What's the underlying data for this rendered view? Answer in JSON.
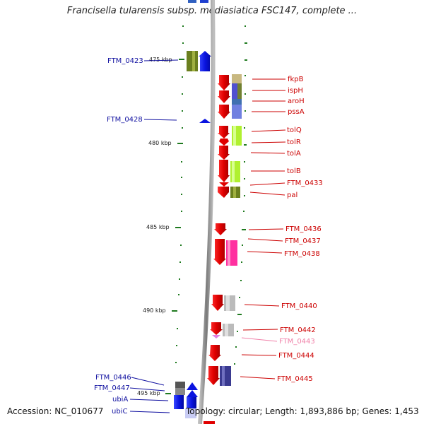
{
  "title": "Francisella tularensis subsp. mediasiatica FSC147, complete ...",
  "footer": {
    "accession": "Accession: NC_010677",
    "topology": "Topology: circular; Length: 1,893,886 bp; Genes: 1,453"
  },
  "scale_labels": [
    "475 kbp",
    "480 kbp",
    "485 kbp",
    "490 kbp",
    "495 kbp"
  ],
  "left_genes": [
    "FTM_0423",
    "FTM_0428",
    "FTM_0446",
    "FTM_0447",
    "ubiA",
    "ubiC"
  ],
  "right_genes": [
    "fkpB",
    "ispH",
    "aroH",
    "pssA",
    "tolQ",
    "tolR",
    "tolA",
    "tolB",
    "FTM_0433",
    "pal",
    "FTM_0436",
    "FTM_0437",
    "FTM_0438",
    "FTM_0440",
    "FTM_0442",
    "FTM_0443",
    "FTM_0444",
    "FTM_0445"
  ],
  "colors": {
    "plus_strand": "#e8000b",
    "minus_strand": "#0a14e0",
    "label_right": "#cc0000",
    "label_left": "#1010a0",
    "label_faded": "#f080a8",
    "tick": "#1f7a1f",
    "backbone": "#8a8a8a"
  }
}
